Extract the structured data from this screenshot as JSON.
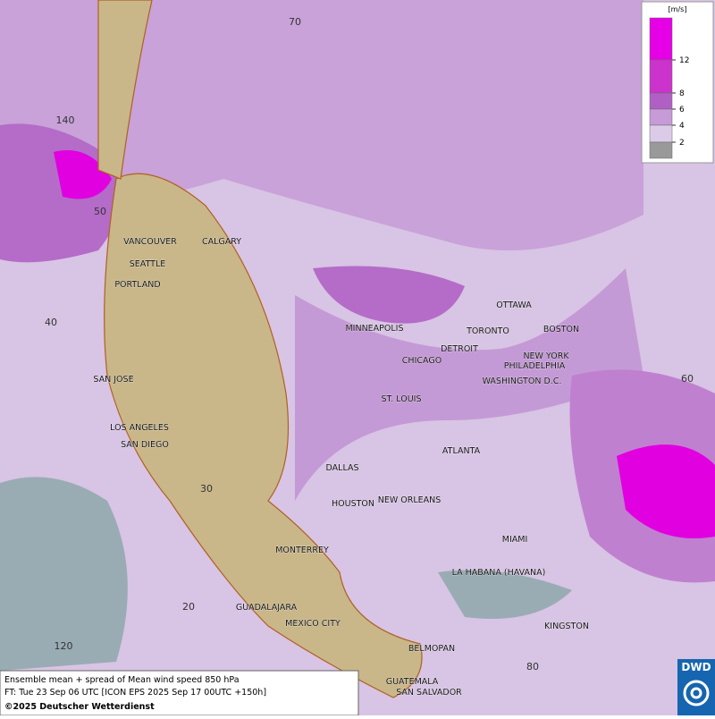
{
  "map": {
    "cities": [
      "VANCOUVER",
      "CALGARY",
      "SEATTLE",
      "PORTLAND",
      "MINNEAPOLIS",
      "OTTAWA",
      "TORONTO",
      "DETROIT",
      "BOSTON",
      "CHICAGO",
      "NEW YORK",
      "PHILADELPHIA",
      "WASHINGTON D.C.",
      "SAN JOSE",
      "ST. LOUIS",
      "LOS ANGELES",
      "SAN DIEGO",
      "ATLANTA",
      "DALLAS",
      "HOUSTON",
      "NEW ORLEANS",
      "MIAMI",
      "MONTERREY",
      "LA HABANA (HAVANA)",
      "GUADALAJARA",
      "MEXICO CITY",
      "KINGSTON",
      "BELMOPAN",
      "GUATEMALA",
      "SAN SALVADOR"
    ],
    "grid_labels": [
      "70",
      "140",
      "50",
      "40",
      "60",
      "30",
      "20",
      "120",
      "80"
    ]
  },
  "legend": {
    "unit": "[m/s]",
    "ticks": [
      12,
      8,
      6,
      4,
      2
    ],
    "colors": [
      "#e600e6",
      "#cc33cc",
      "#b060c4",
      "#c79ad8",
      "#dccbe8",
      "#999999"
    ]
  },
  "footer": {
    "line1": "Ensemble mean + spread of Mean wind speed 850 hPa",
    "line2": "FT: Tue 23 Sep 06 UTC [ICON EPS 2025 Sep 17 00UTC +150h]",
    "line3": "©2025 Deutscher Wetterdienst"
  },
  "logo": "DWD"
}
